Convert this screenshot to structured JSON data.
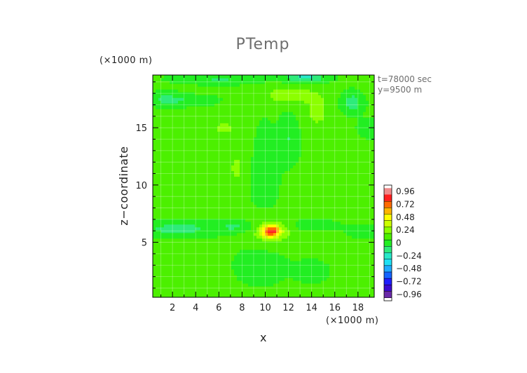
{
  "chart_data": {
    "type": "heatmap",
    "title": "PTemp",
    "xlabel": "x",
    "ylabel": "z−coordinate",
    "x_unit_label": "(×1000 m)",
    "y_unit_label": "(×1000 m)",
    "info_lines": [
      "t=78000 sec",
      "y=9500 m"
    ],
    "xlim": [
      0.3,
      19.4
    ],
    "ylim": [
      0.2,
      19.6
    ],
    "x_ticks": [
      2,
      4,
      6,
      8,
      10,
      12,
      14,
      16,
      18
    ],
    "y_ticks": [
      5,
      10,
      15
    ],
    "grid": true,
    "background_value": 0.08,
    "features": [
      {
        "x": 10.5,
        "z": 6.0,
        "sx": 0.55,
        "sz": 0.35,
        "value": 0.62
      },
      {
        "x": 10.5,
        "z": 6.0,
        "sx": 1.3,
        "sz": 0.8,
        "value": 0.2
      },
      {
        "x": 12.0,
        "z": 17.9,
        "sx": 1.4,
        "sz": 0.5,
        "value": 0.2
      },
      {
        "x": 14.5,
        "z": 16.5,
        "sx": 0.8,
        "sz": 1.2,
        "value": 0.14
      },
      {
        "x": 7.5,
        "z": 11.5,
        "sx": 0.4,
        "sz": 1.0,
        "value": 0.14
      },
      {
        "x": 6.5,
        "z": 15.0,
        "sx": 0.9,
        "sz": 0.5,
        "value": 0.13
      },
      {
        "x": 3.0,
        "z": 9.0,
        "sx": 2.0,
        "sz": 1.0,
        "value": 0.06
      },
      {
        "x": 16.0,
        "z": 9.0,
        "sx": 2.0,
        "sz": 1.0,
        "value": 0.06
      },
      {
        "x": 16.0,
        "z": 6.0,
        "sx": 1.6,
        "sz": 0.6,
        "value": 0.08
      },
      {
        "x": 13.5,
        "z": 19.4,
        "sx": 1.2,
        "sz": 0.3,
        "value": -0.3
      },
      {
        "x": 6.0,
        "z": 19.3,
        "sx": 2.5,
        "sz": 0.3,
        "value": -0.15
      },
      {
        "x": 1.5,
        "z": 17.5,
        "sx": 1.0,
        "sz": 0.4,
        "value": -0.18
      },
      {
        "x": 4.0,
        "z": 17.4,
        "sx": 1.2,
        "sz": 0.3,
        "value": -0.12
      },
      {
        "x": 17.5,
        "z": 17.2,
        "sx": 0.6,
        "sz": 0.6,
        "value": -0.22
      },
      {
        "x": 19.0,
        "z": 15.0,
        "sx": 0.6,
        "sz": 0.5,
        "value": -0.14
      },
      {
        "x": 12.0,
        "z": 14.0,
        "sx": 0.6,
        "sz": 1.3,
        "value": -0.14
      },
      {
        "x": 10.0,
        "z": 13.0,
        "sx": 0.5,
        "sz": 1.6,
        "value": -0.1
      },
      {
        "x": 2.5,
        "z": 6.2,
        "sx": 2.2,
        "sz": 0.45,
        "value": -0.2
      },
      {
        "x": 7.5,
        "z": 6.4,
        "sx": 1.3,
        "sz": 0.35,
        "value": -0.15
      },
      {
        "x": 14.5,
        "z": 6.5,
        "sx": 1.5,
        "sz": 0.4,
        "value": -0.14
      },
      {
        "x": 18.0,
        "z": 6.0,
        "sx": 1.2,
        "sz": 0.4,
        "value": -0.14
      },
      {
        "x": 9.5,
        "z": 3.0,
        "sx": 1.5,
        "sz": 1.2,
        "value": -0.07
      },
      {
        "x": 14.0,
        "z": 2.5,
        "sx": 1.2,
        "sz": 0.8,
        "value": -0.05
      },
      {
        "x": 10.0,
        "z": 10.0,
        "sx": 1.0,
        "sz": 2.0,
        "value": -0.05
      }
    ],
    "colorbar": {
      "levels": [
        "0.96",
        "0.72",
        "0.48",
        "0.24",
        "0",
        "−0.24",
        "−0.48",
        "−0.72",
        "−0.96"
      ],
      "min": -1.08,
      "max": 1.08,
      "bands": [
        {
          "value": 0.96,
          "color": "#ee8a8a"
        },
        {
          "value": 0.84,
          "color": "#ff1e1e"
        },
        {
          "value": 0.72,
          "color": "#ff6a00"
        },
        {
          "value": 0.6,
          "color": "#ffb400"
        },
        {
          "value": 0.48,
          "color": "#ffff00"
        },
        {
          "value": 0.36,
          "color": "#ccff00"
        },
        {
          "value": 0.24,
          "color": "#8cff00"
        },
        {
          "value": 0.12,
          "color": "#4cf000"
        },
        {
          "value": 0.0,
          "color": "#22ee22"
        },
        {
          "value": -0.12,
          "color": "#2eeb7a"
        },
        {
          "value": -0.24,
          "color": "#28e8c8"
        },
        {
          "value": -0.36,
          "color": "#1ee0f4"
        },
        {
          "value": -0.48,
          "color": "#1eaaff"
        },
        {
          "value": -0.6,
          "color": "#1464ff"
        },
        {
          "value": -0.72,
          "color": "#1e1eff"
        },
        {
          "value": -0.84,
          "color": "#3a0ad0"
        },
        {
          "value": -0.96,
          "color": "#6a2aa8"
        }
      ]
    }
  }
}
